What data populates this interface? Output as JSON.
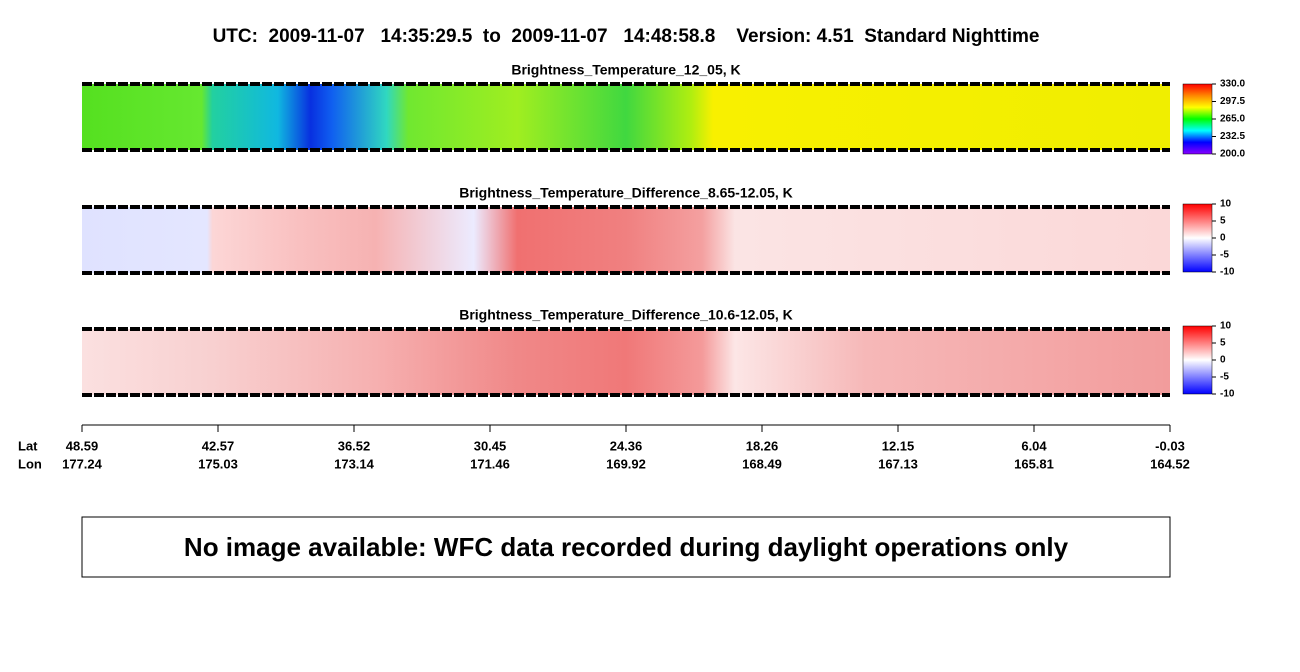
{
  "header": {
    "title": "UTC:  2009-11-07   14:35:29.5  to  2009-11-07   14:48:58.8    Version: 4.51  Standard Nighttime"
  },
  "panels": [
    {
      "title": "Brightness_Temperature_12_05, K",
      "colorbar": {
        "ticks": [
          {
            "value": 330,
            "label": "330.0"
          },
          297.5,
          {
            "value": 265,
            "label": "265.0"
          },
          232.5,
          {
            "value": 200,
            "label": "200.0"
          }
        ],
        "colors": [
          "#ff0000",
          "#ff8800",
          "#ffff00",
          "#00ff00",
          "#00ffff",
          "#0000ff",
          "#8800ff"
        ]
      }
    },
    {
      "title": "Brightness_Temperature_Difference_8.65-12.05, K",
      "colorbar": {
        "ticks": [
          10,
          5,
          0,
          -5,
          -10
        ],
        "colors": [
          "#ff0000",
          "#ffffff",
          "#0000ff"
        ]
      }
    },
    {
      "title": "Brightness_Temperature_Difference_10.6-12.05, K",
      "colorbar": {
        "ticks": [
          10,
          5,
          0,
          -5,
          -10
        ],
        "colors": [
          "#ff0000",
          "#ffffff",
          "#0000ff"
        ]
      }
    }
  ],
  "axis": {
    "lat_label": "Lat",
    "lon_label": "Lon",
    "lat": [
      48.59,
      42.57,
      36.52,
      30.45,
      24.36,
      18.26,
      12.15,
      6.04,
      -0.03
    ],
    "lon": [
      177.24,
      175.03,
      173.14,
      171.46,
      169.92,
      168.49,
      167.13,
      165.81,
      164.52
    ]
  },
  "notice": "No image available: WFC data recorded during daylight operations only"
}
